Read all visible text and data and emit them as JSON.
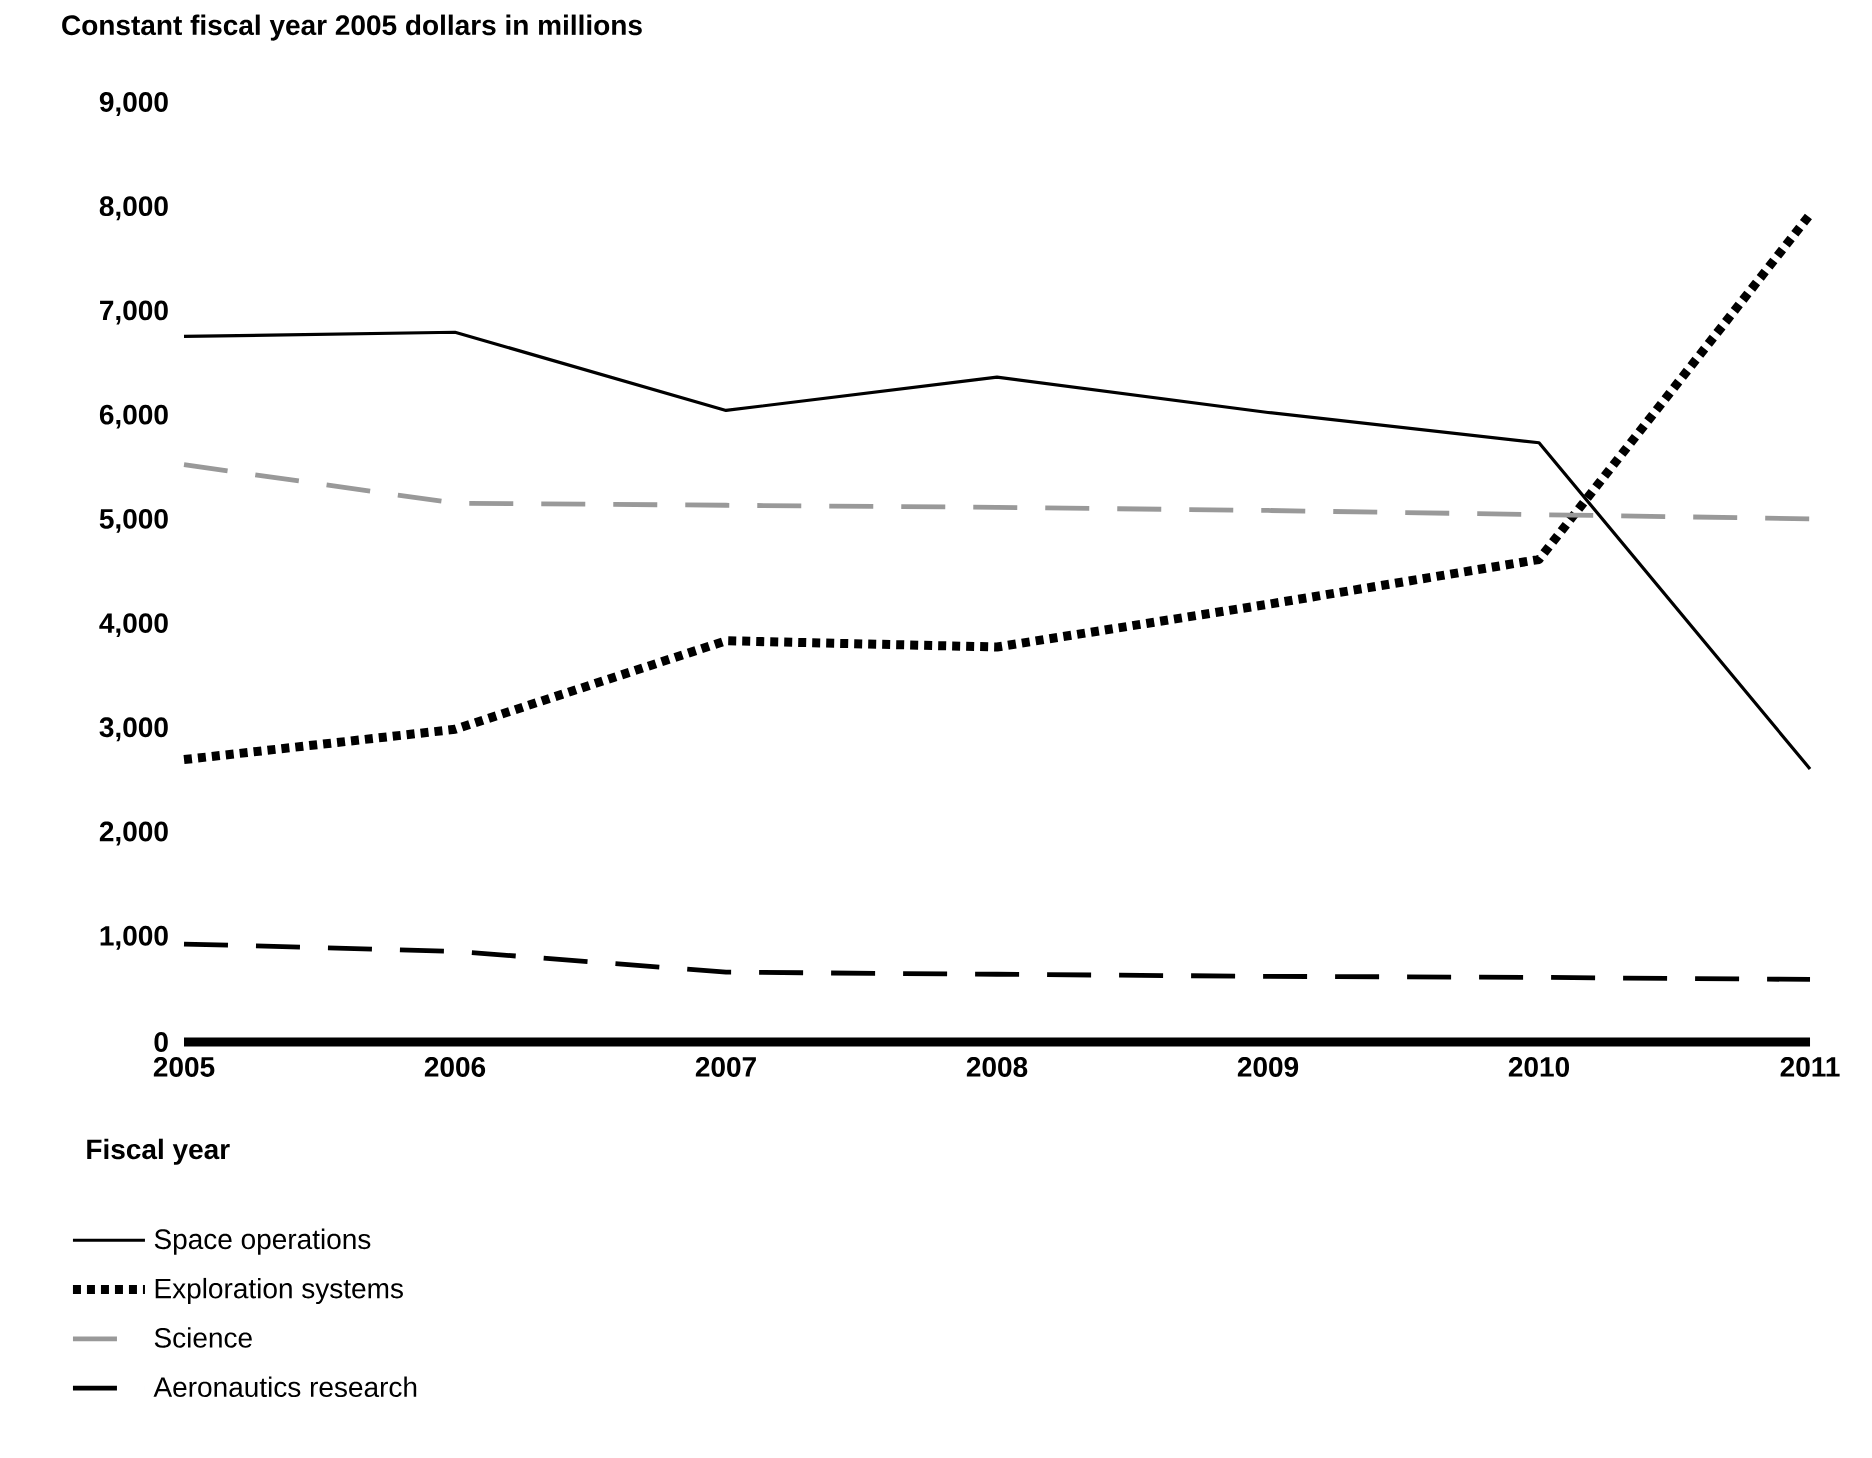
{
  "chart_data": {
    "type": "line",
    "ylabel": "Constant fiscal year 2005 dollars in millions",
    "xlabel": "Fiscal year",
    "x": [
      2005,
      2006,
      2007,
      2008,
      2009,
      2010,
      2011
    ],
    "xlim": [
      2005,
      2011
    ],
    "xticks": [
      2005,
      2006,
      2007,
      2008,
      2009,
      2010,
      2011
    ],
    "ylim": [
      0,
      9000
    ],
    "yticks": [
      {
        "value": 0,
        "label": "0"
      },
      {
        "value": 1000,
        "label": "1,000"
      },
      {
        "value": 2000,
        "label": "2,000"
      },
      {
        "value": 3000,
        "label": "3,000"
      },
      {
        "value": 4000,
        "label": "4,000"
      },
      {
        "value": 5000,
        "label": "5,000"
      },
      {
        "value": 6000,
        "label": "6,000"
      },
      {
        "value": 7000,
        "label": "7,000"
      },
      {
        "value": 8000,
        "label": "8,000"
      },
      {
        "value": 9000,
        "label": "9,000"
      }
    ],
    "legend": "bottom",
    "marker": "none",
    "series": [
      {
        "name": "Space operations",
        "color": "#000000",
        "line_style": "solid",
        "values": [
          6770,
          6810,
          6060,
          6380,
          6040,
          5750,
          2620
        ]
      },
      {
        "name": "Exploration systems",
        "color": "#000000",
        "line_style": "dotted",
        "values": [
          2710,
          3000,
          3850,
          3790,
          4200,
          4630,
          7940
        ]
      },
      {
        "name": "Science",
        "color": "#999999",
        "line_style": "dashed",
        "values": [
          5540,
          5170,
          5150,
          5130,
          5100,
          5060,
          5020
        ]
      },
      {
        "name": "Aeronautics research",
        "color": "#000000",
        "line_style": "dashed",
        "values": [
          940,
          870,
          670,
          650,
          630,
          620,
          600
        ]
      }
    ]
  }
}
